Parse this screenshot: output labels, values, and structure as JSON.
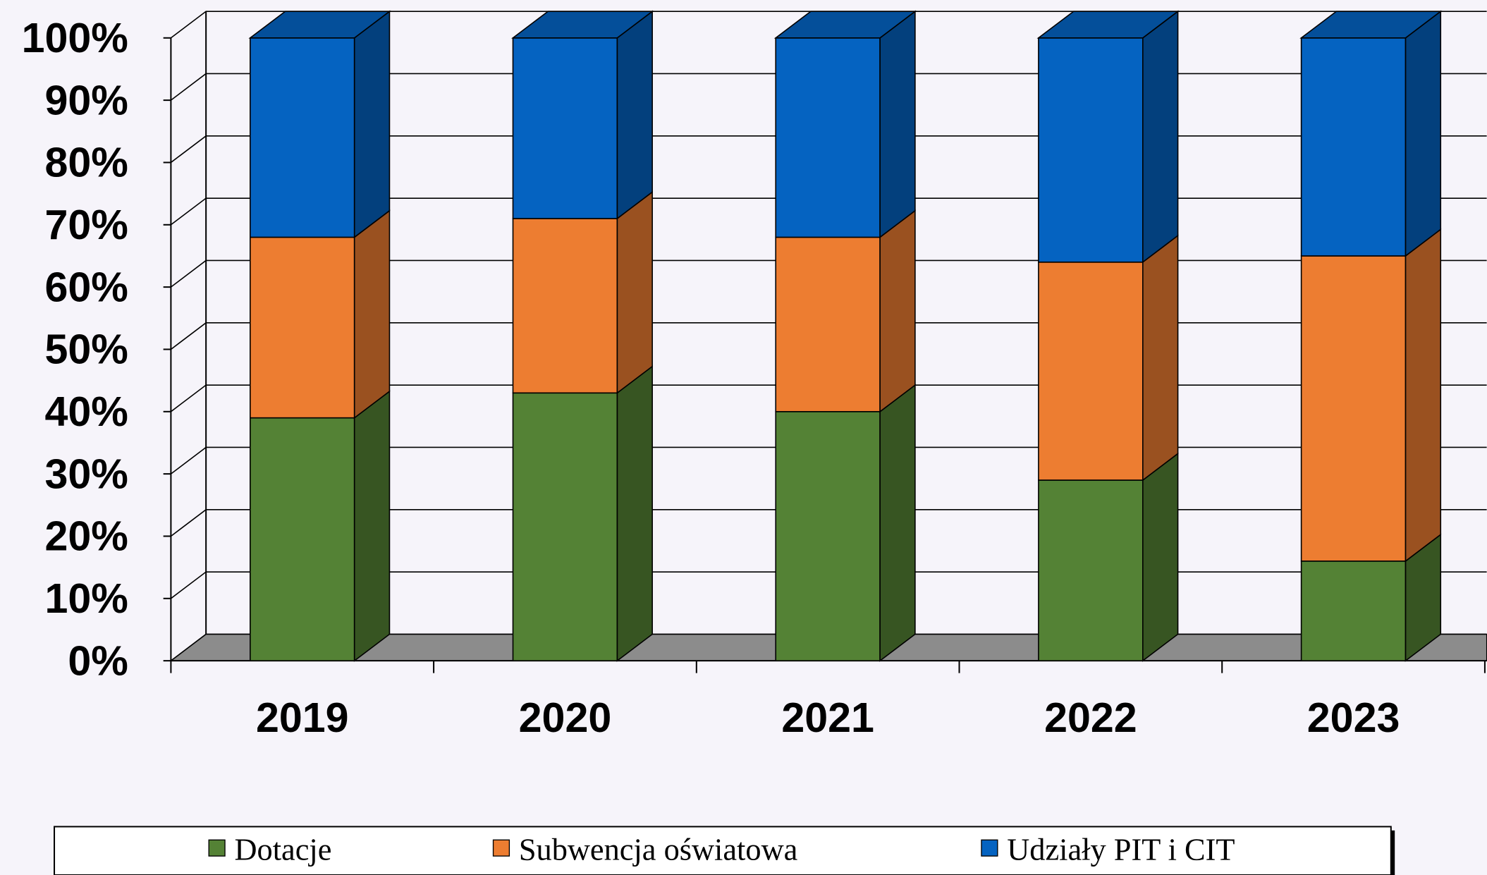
{
  "chart_data": {
    "type": "bar",
    "stacked": true,
    "categories": [
      "2019",
      "2020",
      "2021",
      "2022",
      "2023"
    ],
    "series": [
      {
        "name": "Dotacje",
        "color": "#548235",
        "values": [
          39,
          43,
          40,
          29,
          16
        ]
      },
      {
        "name": "Subwencja oświatowa",
        "color": "#ed7d31",
        "values": [
          29,
          28,
          28,
          35,
          49
        ]
      },
      {
        "name": "Udziały PIT i CIT",
        "color": "#0563c1",
        "values": [
          32,
          29,
          32,
          36,
          35
        ]
      }
    ],
    "ylim": [
      0,
      100
    ],
    "yticks": [
      {
        "value": 0,
        "label": "0%"
      },
      {
        "value": 10,
        "label": "10%"
      },
      {
        "value": 20,
        "label": "20%"
      },
      {
        "value": 30,
        "label": "30%"
      },
      {
        "value": 40,
        "label": "40%"
      },
      {
        "value": 50,
        "label": "50%"
      },
      {
        "value": 60,
        "label": "60%"
      },
      {
        "value": 70,
        "label": "70%"
      },
      {
        "value": 80,
        "label": "80%"
      },
      {
        "value": 90,
        "label": "90%"
      },
      {
        "value": 100,
        "label": "100%"
      }
    ],
    "grid": true,
    "legend": "bottom"
  }
}
